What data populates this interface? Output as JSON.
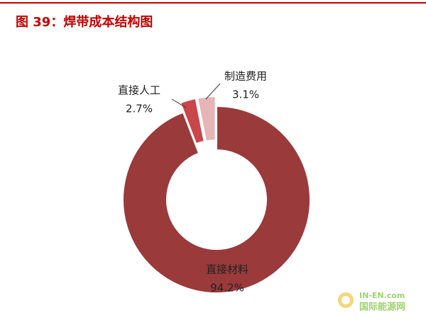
{
  "chart_data": {
    "type": "pie",
    "title": "图 39：焊带成本结构图",
    "categories": [
      "直接材料",
      "直接人工",
      "制造费用"
    ],
    "values": [
      94.2,
      2.7,
      3.1
    ],
    "value_labels": [
      "94.2%",
      "2.7%",
      "3.1%"
    ],
    "colors": [
      "#9a3a3a",
      "#c9464b",
      "#e6b5b5"
    ],
    "donut": true
  },
  "watermark": {
    "site": "IN-EN.com",
    "name": "国际能源网"
  }
}
